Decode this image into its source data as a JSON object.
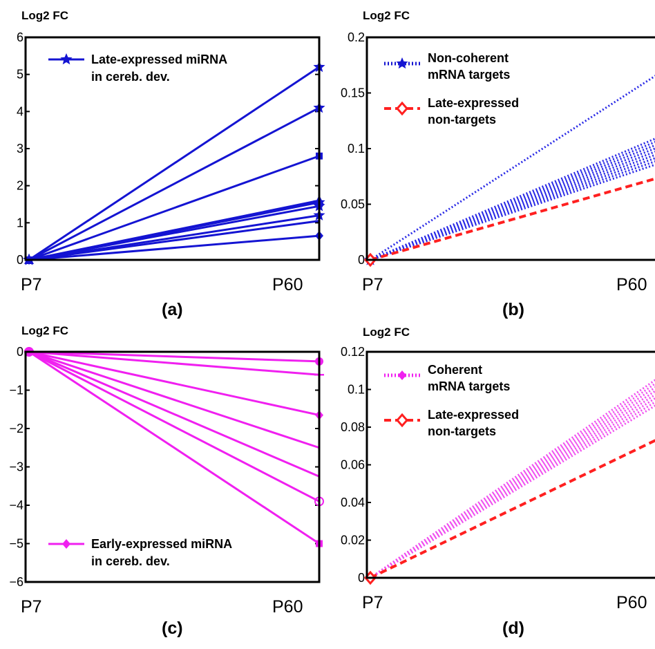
{
  "chart_data": [
    {
      "panel_label": "(a)",
      "type": "line",
      "ylabel": "Log2 FC",
      "x": [
        "P7",
        "P60"
      ],
      "ylim": [
        0,
        6
      ],
      "yticks": [
        "0",
        "1",
        "2",
        "3",
        "4",
        "5",
        "6"
      ],
      "legend": {
        "position": "top-left",
        "lines": [
          "Late-expressed miRNA",
          "in cereb. dev."
        ]
      },
      "series": [
        {
          "color": "#1414d2",
          "dash": "solid",
          "marker": "star",
          "values": [
            0,
            5.2
          ]
        },
        {
          "color": "#1414d2",
          "dash": "solid",
          "marker": "star",
          "values": [
            0,
            4.1
          ]
        },
        {
          "color": "#1414d2",
          "dash": "solid",
          "marker": "square",
          "values": [
            0,
            2.8
          ]
        },
        {
          "color": "#1414d2",
          "dash": "solid",
          "marker": "triangle",
          "values": [
            0,
            1.6
          ]
        },
        {
          "color": "#1414d2",
          "dash": "solid",
          "marker": "star",
          "values": [
            0,
            1.55
          ]
        },
        {
          "color": "#1414d2",
          "dash": "solid",
          "marker": "star",
          "values": [
            0,
            1.45
          ]
        },
        {
          "color": "#1414d2",
          "dash": "solid",
          "marker": "star",
          "values": [
            0,
            1.2
          ]
        },
        {
          "color": "#1414d2",
          "dash": "solid",
          "marker": "none",
          "values": [
            0,
            1.05
          ]
        },
        {
          "color": "#1414d2",
          "dash": "solid",
          "marker": "diamond",
          "values": [
            0,
            0.65
          ]
        }
      ]
    },
    {
      "panel_label": "(b)",
      "type": "line",
      "ylabel": "Log2 FC",
      "x": [
        "P7",
        "P60"
      ],
      "ylim": [
        0,
        0.2
      ],
      "yticks": [
        "0",
        "0.05",
        "0.1",
        "0.15",
        "0.2"
      ],
      "legend": {
        "position": "top-left",
        "entries": [
          {
            "lines": [
              "Non-coherent",
              "mRNA targets"
            ],
            "color": "#1414d2",
            "dash": "dotted",
            "marker": "star"
          },
          {
            "lines": [
              "Late-expressed",
              "non-targets"
            ],
            "color": "#ff2020",
            "dash": "dashed",
            "marker": "diamond-open"
          }
        ]
      },
      "series": [
        {
          "color": "#2a2ae6",
          "dash": "dotted",
          "marker": "star",
          "values": [
            0,
            0.17
          ]
        },
        {
          "color": "#2a2ae6",
          "dash": "dotted",
          "marker": "star",
          "values": [
            0,
            0.112
          ]
        },
        {
          "color": "#2a2ae6",
          "dash": "dotted",
          "marker": "star",
          "values": [
            0,
            0.109
          ]
        },
        {
          "color": "#2a2ae6",
          "dash": "dotted",
          "marker": "star",
          "values": [
            0,
            0.106
          ]
        },
        {
          "color": "#2a2ae6",
          "dash": "dotted",
          "marker": "star",
          "values": [
            0,
            0.103
          ]
        },
        {
          "color": "#2a2ae6",
          "dash": "dotted",
          "marker": "star",
          "values": [
            0,
            0.1
          ]
        },
        {
          "color": "#2a2ae6",
          "dash": "dotted",
          "marker": "star",
          "values": [
            0,
            0.097
          ]
        },
        {
          "color": "#2a2ae6",
          "dash": "dotted",
          "marker": "star",
          "values": [
            0,
            0.094
          ]
        },
        {
          "color": "#2a2ae6",
          "dash": "dotted",
          "marker": "star",
          "values": [
            0,
            0.091
          ]
        },
        {
          "color": "#2a2ae6",
          "dash": "dotted",
          "marker": "star",
          "values": [
            0,
            0.088
          ]
        },
        {
          "color": "#ff2020",
          "dash": "dashed",
          "marker": "diamond-open",
          "values": [
            0,
            0.075
          ]
        }
      ]
    },
    {
      "panel_label": "(c)",
      "type": "line",
      "ylabel": "Log2 FC",
      "x": [
        "P7",
        "P60"
      ],
      "ylim": [
        -6,
        0
      ],
      "yticks": [
        "0",
        "−1",
        "−2",
        "−3",
        "−4",
        "−5",
        "−6"
      ],
      "legend": {
        "position": "bottom-left",
        "lines": [
          "Early-expressed miRNA",
          "in cereb. dev."
        ]
      },
      "series": [
        {
          "color": "#f020f0",
          "dash": "solid",
          "marker": "circle",
          "values": [
            0,
            -0.25
          ]
        },
        {
          "color": "#f020f0",
          "dash": "solid",
          "marker": "plus",
          "values": [
            0,
            -0.6
          ]
        },
        {
          "color": "#f020f0",
          "dash": "solid",
          "marker": "diamond",
          "values": [
            0,
            -1.65
          ]
        },
        {
          "color": "#f020f0",
          "dash": "solid",
          "marker": "none",
          "values": [
            0,
            -2.5
          ]
        },
        {
          "color": "#f020f0",
          "dash": "solid",
          "marker": "none",
          "values": [
            0,
            -3.25
          ]
        },
        {
          "color": "#f020f0",
          "dash": "solid",
          "marker": "circle-open",
          "values": [
            0,
            -3.9
          ]
        },
        {
          "color": "#f020f0",
          "dash": "solid",
          "marker": "square",
          "values": [
            0,
            -5
          ]
        }
      ]
    },
    {
      "panel_label": "(d)",
      "type": "line",
      "ylabel": "Log2 FC",
      "x": [
        "P7",
        "P60"
      ],
      "ylim": [
        0,
        0.12
      ],
      "yticks": [
        "0",
        "0.02",
        "0.04",
        "0.06",
        "0.08",
        "0.1",
        "0.12"
      ],
      "legend": {
        "position": "top-left",
        "entries": [
          {
            "lines": [
              "Coherent",
              "mRNA targets"
            ],
            "color": "#f020f0",
            "dash": "dotted",
            "marker": "diamond"
          },
          {
            "lines": [
              "Late-expressed",
              "non-targets"
            ],
            "color": "#ff2020",
            "dash": "dashed",
            "marker": "diamond-open"
          }
        ]
      },
      "series": [
        {
          "color": "#f050f0",
          "dash": "dotted",
          "marker": "diamond",
          "values": [
            0,
            0.108
          ]
        },
        {
          "color": "#f050f0",
          "dash": "dotted",
          "marker": "diamond",
          "values": [
            0,
            0.106
          ]
        },
        {
          "color": "#f050f0",
          "dash": "dotted",
          "marker": "diamond",
          "values": [
            0,
            0.104
          ]
        },
        {
          "color": "#f050f0",
          "dash": "dotted",
          "marker": "diamond",
          "values": [
            0,
            0.102
          ]
        },
        {
          "color": "#f050f0",
          "dash": "dotted",
          "marker": "diamond",
          "values": [
            0,
            0.1
          ]
        },
        {
          "color": "#f050f0",
          "dash": "dotted",
          "marker": "diamond",
          "values": [
            0,
            0.098
          ]
        },
        {
          "color": "#f050f0",
          "dash": "dotted",
          "marker": "diamond",
          "values": [
            0,
            0.096
          ]
        },
        {
          "color": "#f050f0",
          "dash": "dotted",
          "marker": "diamond",
          "values": [
            0,
            0.094
          ]
        },
        {
          "color": "#ff2020",
          "dash": "dashed",
          "marker": "diamond-open",
          "values": [
            0,
            0.075
          ]
        }
      ]
    }
  ]
}
